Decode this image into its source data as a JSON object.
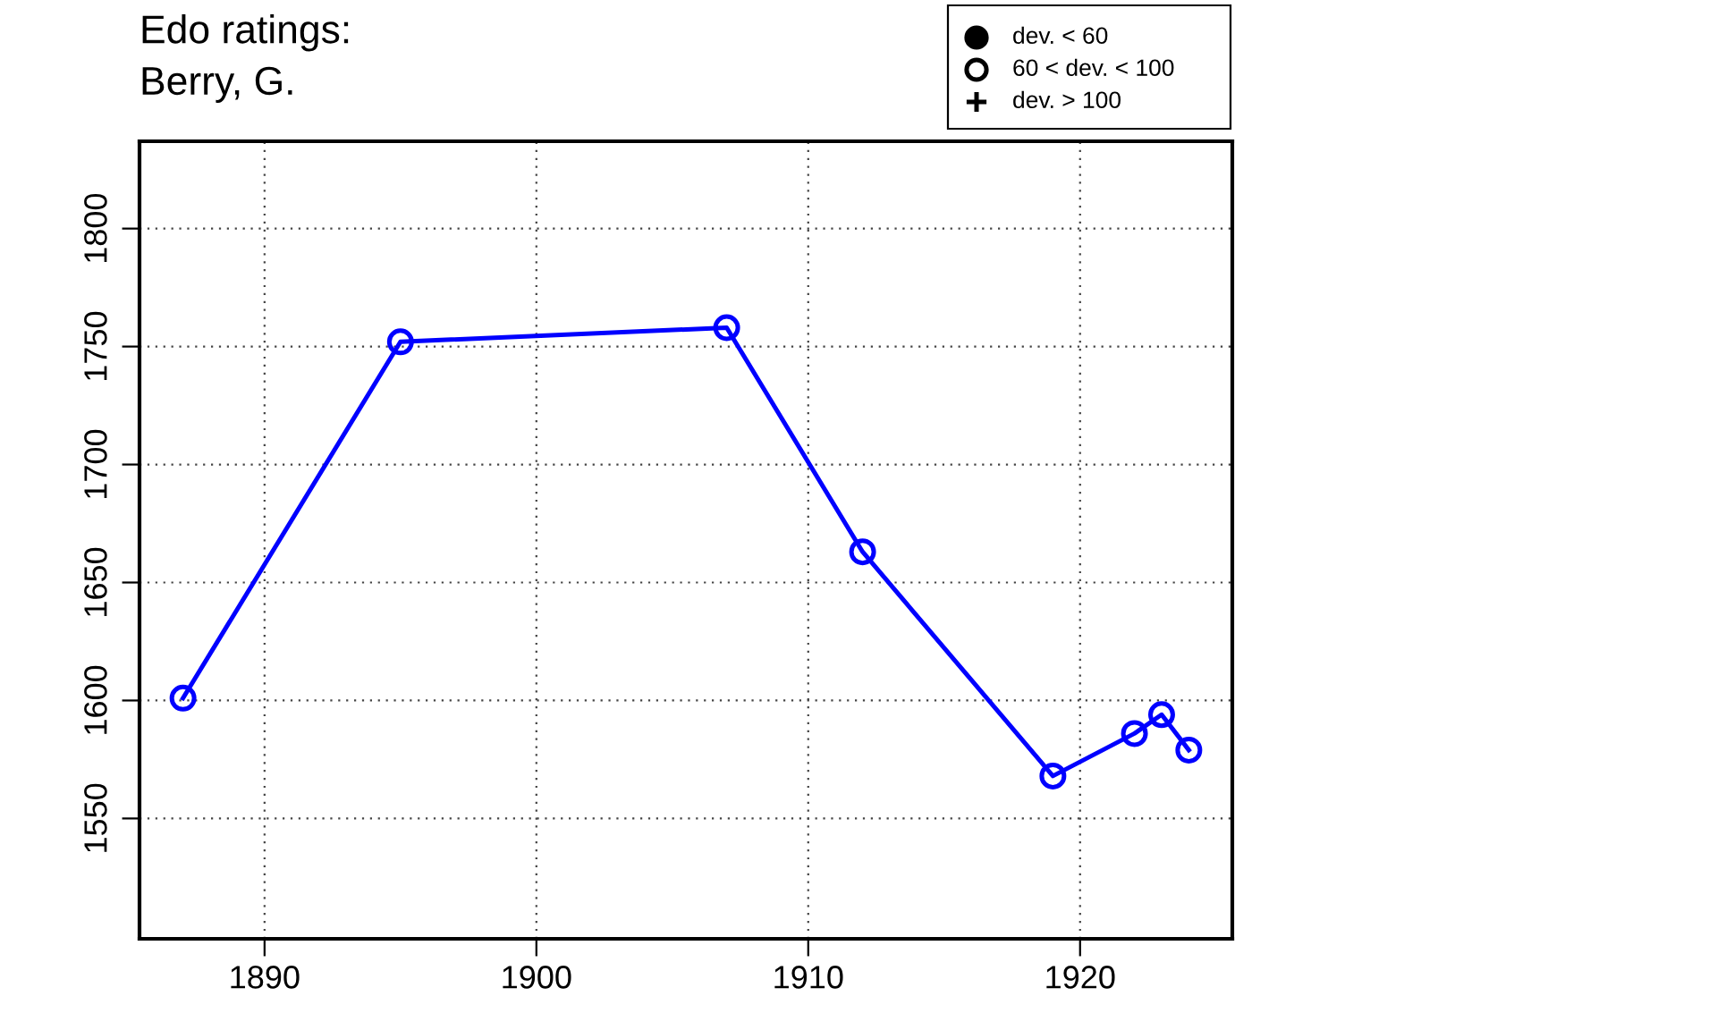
{
  "chart_data": {
    "type": "line",
    "title": "Edo ratings:\nBerry, G.",
    "x": [
      1887,
      1895,
      1907,
      1912,
      1919,
      1922,
      1923,
      1924
    ],
    "series": [
      {
        "color": "#0000ff",
        "values": [
          1601,
          1752,
          1758,
          1663,
          1568,
          1586,
          1594,
          1579
        ]
      }
    ],
    "marker": "circle",
    "annotations": [
      "dev. < 60",
      "60 < dev. < 100",
      "dev. > 100"
    ],
    "xlim": [
      1885.4,
      1925.6
    ],
    "ylim": [
      1499,
      1837
    ],
    "xticks": [
      1890,
      1900,
      1910,
      1920
    ],
    "yticks": [
      1550,
      1600,
      1650,
      1700,
      1750,
      1800
    ],
    "grid": true,
    "line_style": "solid"
  }
}
